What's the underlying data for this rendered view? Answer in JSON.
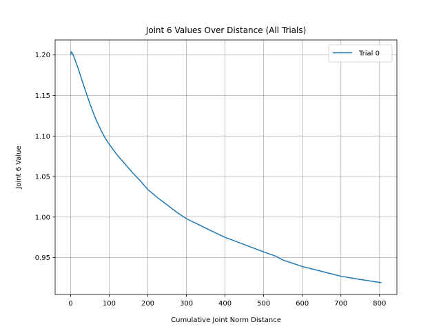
{
  "chart_data": {
    "type": "line",
    "title": "Joint 6 Values Over Distance (All Trials)",
    "xlabel": "Cumulative Joint Norm Distance",
    "ylabel": "Joint 6 Value",
    "xlim": [
      -40,
      845
    ],
    "ylim": [
      0.9045,
      1.2185
    ],
    "xticks": [
      0,
      100,
      200,
      300,
      400,
      500,
      600,
      700,
      800
    ],
    "yticks": [
      0.95,
      1.0,
      1.05,
      1.1,
      1.15,
      1.2
    ],
    "ytick_labels": [
      "0.95",
      "1.00",
      "1.05",
      "1.10",
      "1.15",
      "1.20"
    ],
    "grid": true,
    "legend_position": "upper right",
    "series": [
      {
        "name": "Trial 0",
        "color": "#1f77b4",
        "points": [
          [
            0,
            1.2
          ],
          [
            2,
            1.204
          ],
          [
            5,
            1.202
          ],
          [
            10,
            1.196
          ],
          [
            20,
            1.183
          ],
          [
            30,
            1.168
          ],
          [
            40,
            1.154
          ],
          [
            50,
            1.14
          ],
          [
            60,
            1.127
          ],
          [
            70,
            1.116
          ],
          [
            80,
            1.106
          ],
          [
            90,
            1.097
          ],
          [
            100,
            1.09
          ],
          [
            120,
            1.077
          ],
          [
            140,
            1.066
          ],
          [
            160,
            1.055
          ],
          [
            180,
            1.045
          ],
          [
            200,
            1.034
          ],
          [
            225,
            1.024
          ],
          [
            250,
            1.015
          ],
          [
            275,
            1.006
          ],
          [
            300,
            0.998
          ],
          [
            330,
            0.991
          ],
          [
            360,
            0.984
          ],
          [
            400,
            0.975
          ],
          [
            450,
            0.966
          ],
          [
            500,
            0.957
          ],
          [
            530,
            0.952
          ],
          [
            550,
            0.947
          ],
          [
            600,
            0.939
          ],
          [
            650,
            0.933
          ],
          [
            700,
            0.927
          ],
          [
            750,
            0.923
          ],
          [
            805,
            0.919
          ]
        ]
      }
    ]
  }
}
